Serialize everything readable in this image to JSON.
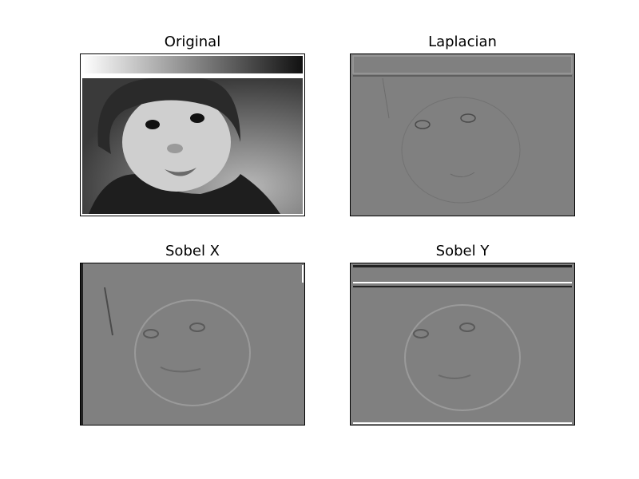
{
  "panels": [
    {
      "id": "original",
      "title": "Original"
    },
    {
      "id": "laplacian",
      "title": "Laplacian"
    },
    {
      "id": "sobelx",
      "title": "Sobel X"
    },
    {
      "id": "sobely",
      "title": "Sobel Y"
    }
  ],
  "colors": {
    "background": "#ffffff",
    "edge_gray": "#808080",
    "original_bg": "#5a5a5a",
    "skin": "#cfcfcf",
    "hat": "#2a2a2a",
    "coat": "#1e1e1e"
  }
}
